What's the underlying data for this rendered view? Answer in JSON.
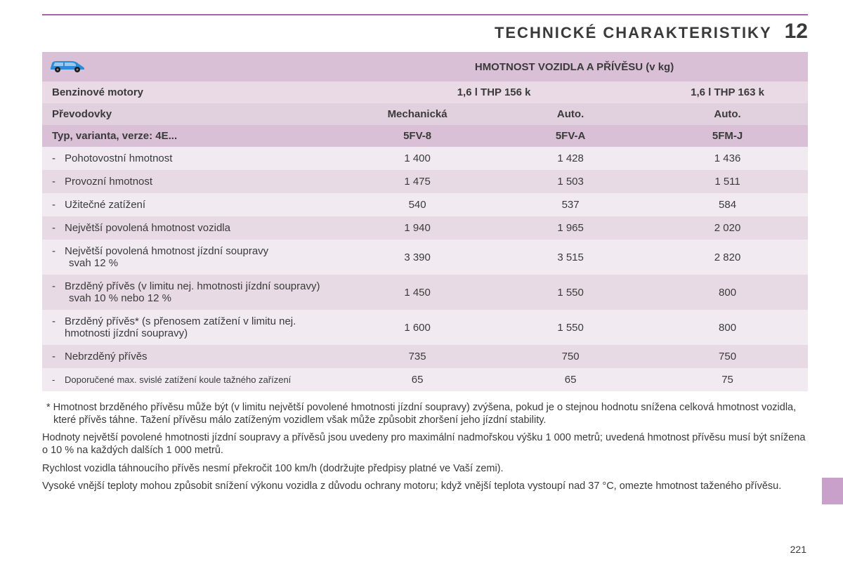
{
  "colors": {
    "accent_rule": "#a564a5",
    "header_band_dark": "#d9c0d7",
    "header_band_mid": "#e1d0de",
    "header_band_light": "#e9dae6",
    "row_even": "#f2eaf1",
    "row_odd": "#e7dae5",
    "side_tab": "#c9a0c9",
    "text": "#3a3a3a",
    "car_body": "#2e8bd6",
    "car_window": "#9fc7e8",
    "car_wheel": "#1a1a1a"
  },
  "header": {
    "title": "TECHNICKÉ CHARAKTERISTIKY",
    "chapter_number": "12"
  },
  "table": {
    "title": "HMOTNOST VOZIDLA A PŘÍVĚSU (v kg)",
    "row1_label": "Benzinové motory",
    "row1_col12": "1,6 l THP 156 k",
    "row1_col3": "1,6 l THP 163 k",
    "row2_label": "Převodovky",
    "row2_vals": [
      "Mechanická",
      "Auto.",
      "Auto."
    ],
    "row3_label": "Typ, varianta, verze: 4E...",
    "row3_vals": [
      "5FV-8",
      "5FV-A",
      "5FM-J"
    ],
    "rows": [
      {
        "label": "Pohotovostní hmotnost",
        "vals": [
          "1 400",
          "1 428",
          "1 436"
        ]
      },
      {
        "label": "Provozní hmotnost",
        "vals": [
          "1 475",
          "1 503",
          "1 511"
        ]
      },
      {
        "label": "Užitečné zatížení",
        "vals": [
          "540",
          "537",
          "584"
        ]
      },
      {
        "label": "Největší povolená hmotnost vozidla",
        "vals": [
          "1 940",
          "1 965",
          "2 020"
        ]
      },
      {
        "label": "Největší povolená hmotnost jízdní soupravy",
        "sub": "svah 12 %",
        "vals": [
          "3 390",
          "3 515",
          "2 820"
        ]
      },
      {
        "label": "Brzděný přívěs (v limitu nej. hmotnosti jízdní soupravy)",
        "sub": "svah 10 % nebo 12 %",
        "vals": [
          "1 450",
          "1 550",
          "800"
        ]
      },
      {
        "label": "Brzděný přívěs* (s přenosem zatížení v limitu nej. hmotnosti jízdní soupravy)",
        "vals": [
          "1 600",
          "1 550",
          "800"
        ]
      },
      {
        "label": "Nebrzděný přívěs",
        "vals": [
          "735",
          "750",
          "750"
        ]
      },
      {
        "label": "Doporučené max. svislé zatížení koule tažného zařízení",
        "small": true,
        "vals": [
          "65",
          "65",
          "75"
        ]
      }
    ]
  },
  "footnotes": {
    "f1": "* Hmotnost brzděného přívěsu může být (v limitu největší povolené hmotnosti jízdní soupravy) zvýšena, pokud je o stejnou hodnotu snížena celková hmotnost vozidla, které přívěs táhne. Tažení přívěsu málo zatíženým vozidlem však může způsobit zhoršení jeho jízdní stability.",
    "f2": "Hodnoty největší povolené hmotnosti jízdní soupravy a přívěsů jsou uvedeny pro maximální nadmořskou výšku 1 000 metrů; uvedená hmotnost přívěsu musí být snížena o 10 % na každých dalších 1 000 metrů.",
    "f3": "Rychlost vozidla táhnoucího přívěs nesmí překročit 100 km/h (dodržujte předpisy platné ve Vaší zemi).",
    "f4": "Vysoké vnější teploty mohou způsobit snížení výkonu vozidla z důvodu ochrany motoru; když vnější teplota vystoupí nad 37 °C, omezte hmotnost taženého přívěsu."
  },
  "page_number": "221"
}
